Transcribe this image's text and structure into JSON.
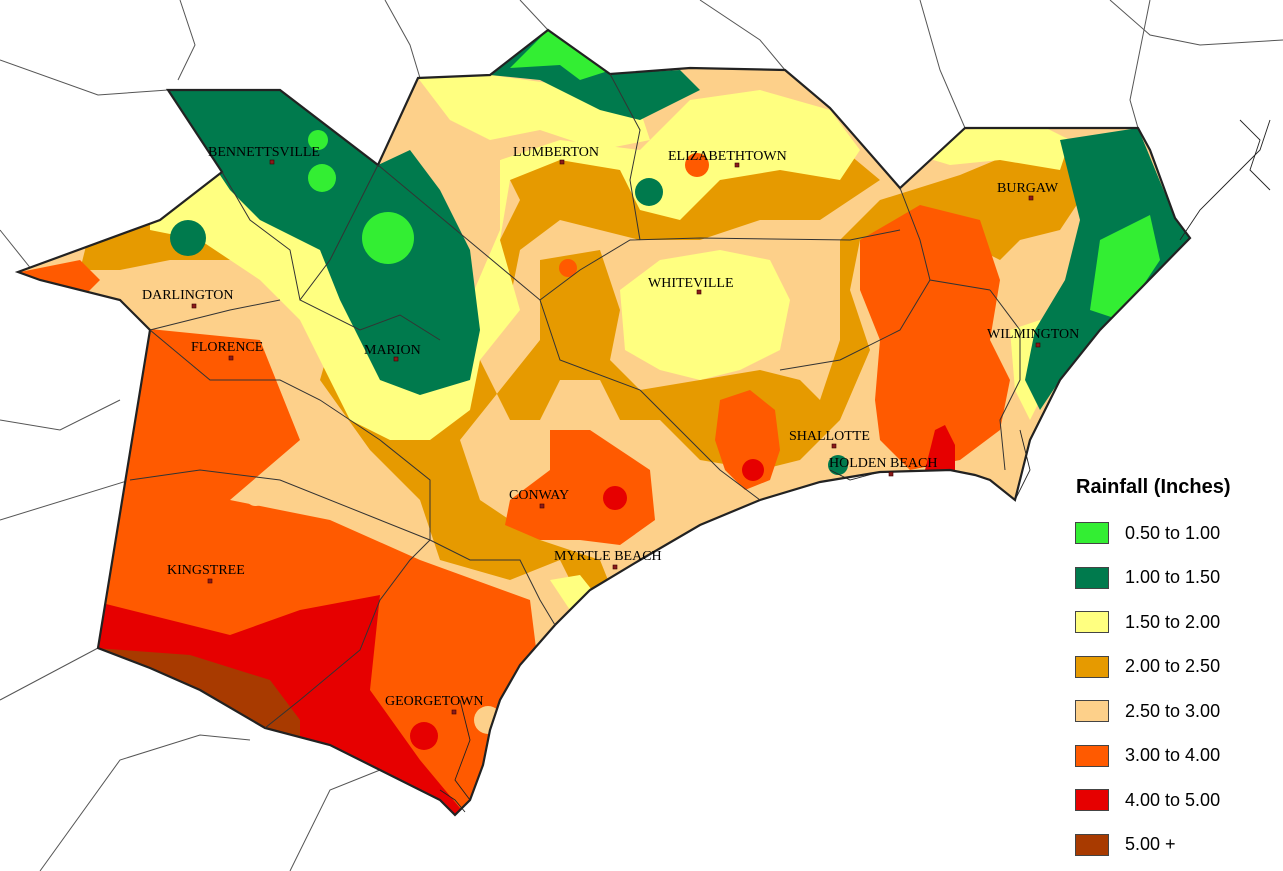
{
  "legend": {
    "title": "Rainfall (Inches)",
    "items": [
      {
        "label": "0.50 to 1.00",
        "color": "#33ee33"
      },
      {
        "label": "1.00 to 1.50",
        "color": "#007a4d"
      },
      {
        "label": "1.50 to 2.00",
        "color": "#ffff80"
      },
      {
        "label": "2.00 to 2.50",
        "color": "#e69a00"
      },
      {
        "label": "2.50 to 3.00",
        "color": "#fdd08a"
      },
      {
        "label": "3.00 to 4.00",
        "color": "#ff5a00"
      },
      {
        "label": "4.00 to 5.00",
        "color": "#e60000"
      },
      {
        "label": "5.00 +",
        "color": "#a83a00"
      }
    ]
  },
  "cities": {
    "bennettsville": "BENNETTSVILLE",
    "lumberton": "LUMBERTON",
    "elizabethtown": "ELIZABETHTOWN",
    "burgaw": "BURGAW",
    "darlington": "DARLINGTON",
    "whiteville": "WHITEVILLE",
    "florence": "FLORENCE",
    "marion": "MARION",
    "wilmington": "WILMINGTON",
    "shallotte": "SHALLOTTE",
    "holden_beach": "HOLDEN BEACH",
    "conway": "CONWAY",
    "myrtle_beach": "MYRTLE BEACH",
    "kingstree": "KINGSTREE",
    "georgetown": "GEORGETOWN"
  }
}
